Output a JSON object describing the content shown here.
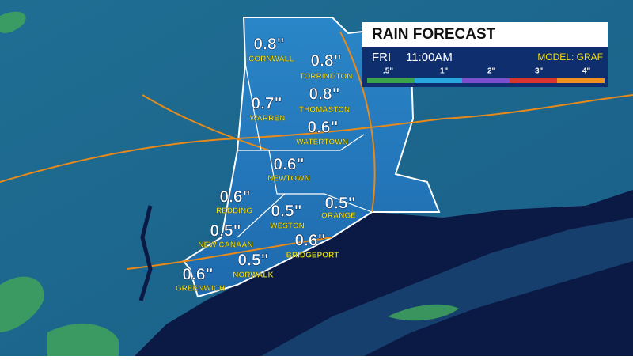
{
  "header": {
    "title": "RAIN FORECAST",
    "day": "FRI",
    "time": "11:00AM",
    "model": "MODEL: GRAF"
  },
  "legend": [
    ".5\"",
    "1\"",
    "2\"",
    "3\"",
    "4\""
  ],
  "towns": [
    {
      "name": "CORNWALL",
      "amount": "0.8\""
    },
    {
      "name": "TORRINGTON",
      "amount": "0.8\""
    },
    {
      "name": "WARREN",
      "amount": "0.7\""
    },
    {
      "name": "THOMASTON",
      "amount": "0.8\""
    },
    {
      "name": "WATERTOWN",
      "amount": "0.6\""
    },
    {
      "name": "NEWTOWN",
      "amount": "0.6\""
    },
    {
      "name": "REDDING",
      "amount": "0.6\""
    },
    {
      "name": "WESTON",
      "amount": "0.5\""
    },
    {
      "name": "ORANGE",
      "amount": "0.5\""
    },
    {
      "name": "NEW CANAAN",
      "amount": "0.5\""
    },
    {
      "name": "BRIDGEPORT",
      "amount": "0.6\""
    },
    {
      "name": "NORWALK",
      "amount": "0.5\""
    },
    {
      "name": "GREENWICH",
      "amount": "0.6\""
    }
  ]
}
